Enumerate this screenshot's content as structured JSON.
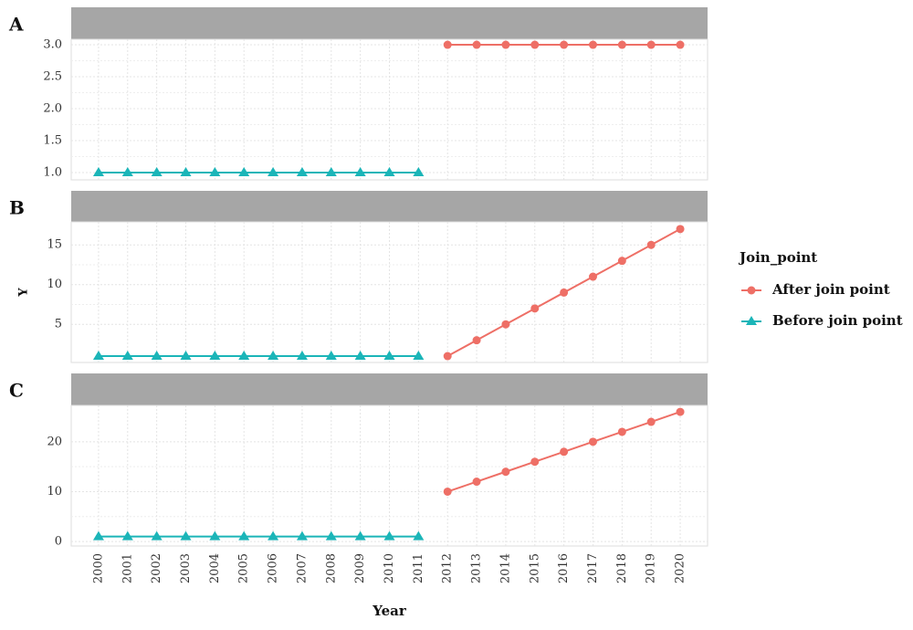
{
  "chart_data": [
    {
      "type": "line",
      "label": "A",
      "series": [
        {
          "color": "#ee6f66",
          "x": [
            2012,
            2013,
            2014,
            2015,
            2016,
            2017,
            2018,
            2019,
            2020
          ],
          "values": [
            3,
            3,
            3,
            3,
            3,
            3,
            3,
            3,
            3
          ]
        },
        {
          "color": "#1bb5b8",
          "x": [
            2000,
            2001,
            2002,
            2003,
            2004,
            2005,
            2006,
            2007,
            2008,
            2009,
            2010,
            2011
          ],
          "values": [
            1,
            1,
            1,
            1,
            1,
            1,
            1,
            1,
            1,
            1,
            1,
            1
          ]
        }
      ],
      "xlim": [
        1999.06,
        2020.94
      ],
      "ylim": [
        0.886,
        3.086
      ],
      "yticks": [
        {
          "value": 1,
          "label": "1.0"
        },
        {
          "value": 1.5,
          "label": "1.5"
        },
        {
          "value": 2,
          "label": "2.0"
        },
        {
          "value": 2.5,
          "label": "2.5"
        },
        {
          "value": 3,
          "label": "3.0"
        }
      ]
    },
    {
      "type": "line",
      "label": "B",
      "ylabel": "Y",
      "legend_title": "Join_point",
      "series": [
        {
          "name": "After join point",
          "color": "#ee6f66",
          "x": [
            2012,
            2013,
            2014,
            2015,
            2016,
            2017,
            2018,
            2019,
            2020
          ],
          "values": [
            1,
            3,
            5,
            7,
            9,
            11,
            13,
            15,
            17
          ]
        },
        {
          "name": "Before join point",
          "color": "#1bb5b8",
          "x": [
            2000,
            2001,
            2002,
            2003,
            2004,
            2005,
            2006,
            2007,
            2008,
            2009,
            2010,
            2011
          ],
          "values": [
            1,
            1,
            1,
            1,
            1,
            1,
            1,
            1,
            1,
            1,
            1,
            1
          ]
        }
      ],
      "xlim": [
        1999.06,
        2020.94
      ],
      "ylim": [
        0.2,
        17.9
      ],
      "yticks": [
        5,
        10,
        15
      ]
    },
    {
      "type": "line",
      "label": "C",
      "xlabel": "Year",
      "series": [
        {
          "color": "#ee6f66",
          "x": [
            2012,
            2013,
            2014,
            2015,
            2016,
            2017,
            2018,
            2019,
            2020
          ],
          "values": [
            10,
            12,
            14,
            16,
            18,
            20,
            22,
            24,
            26
          ]
        },
        {
          "color": "#1bb5b8",
          "x": [
            2000,
            2001,
            2002,
            2003,
            2004,
            2005,
            2006,
            2007,
            2008,
            2009,
            2010,
            2011
          ],
          "values": [
            1,
            1,
            1,
            1,
            1,
            1,
            1,
            1,
            1,
            1,
            1,
            1
          ]
        }
      ],
      "xlim": [
        1999.06,
        2020.94
      ],
      "ylim": [
        -0.9,
        27.3
      ],
      "yticks": [
        0,
        10,
        20
      ],
      "xticks": [
        2000,
        2001,
        2002,
        2003,
        2004,
        2005,
        2006,
        2007,
        2008,
        2009,
        2010,
        2011,
        2012,
        2013,
        2014,
        2015,
        2016,
        2017,
        2018,
        2019,
        2020
      ]
    }
  ]
}
